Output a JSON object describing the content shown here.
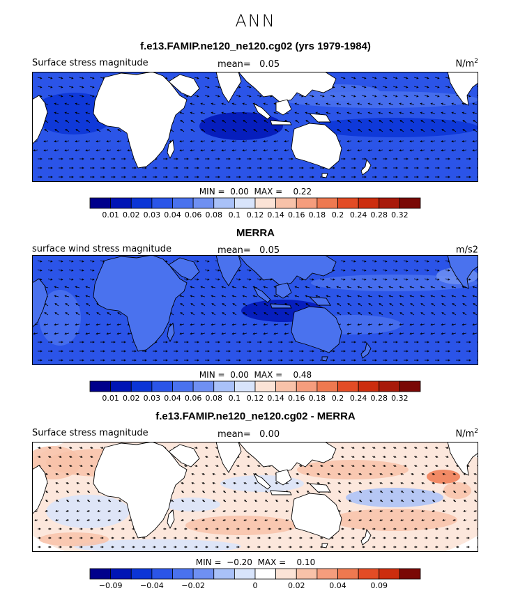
{
  "main_title": "ANN",
  "colors": {
    "ocean_base": "#2f5de6",
    "land": "#ffffff",
    "vector": "#000000"
  },
  "palette_pos": [
    "#00008b",
    "#0015b5",
    "#0b35d6",
    "#2b55e8",
    "#4a72ee",
    "#6f90f2",
    "#a9c1f8",
    "#d8e4fb",
    "#fbe3d6",
    "#f8c2a9",
    "#f59d7d",
    "#ee7950",
    "#e34c25",
    "#cc2d0e",
    "#a81a0a",
    "#7a0805"
  ],
  "palette_diff": [
    "#00008b",
    "#0015b5",
    "#0b35d6",
    "#2b55e8",
    "#4a72ee",
    "#6f90f2",
    "#a9c1f8",
    "#d8e4fb",
    "#ffffff",
    "#fbe3d6",
    "#f8c2a9",
    "#f59d7d",
    "#ee7950",
    "#e34c25",
    "#cc2d0e",
    "#7a0805"
  ],
  "chart_data": [
    {
      "type": "heatmap",
      "title": "f.e13.FAMIP.ne120_ne120.cg02 (yrs 1979-1984)",
      "variable": "Surface stress magnitude",
      "mean_label": "mean=",
      "mean_value": "0.05",
      "units": "N/m",
      "units_sup": "2",
      "min_label": "MIN =",
      "min_value": "0.00",
      "max_label": "MAX =",
      "max_value": "0.22",
      "colorbar_ticks": [
        "0.01",
        "0.02",
        "0.03",
        "0.04",
        "0.06",
        "0.08",
        "0.1",
        "0.12",
        "0.14",
        "0.16",
        "0.18",
        "0.2",
        "0.24",
        "0.28",
        "0.32"
      ]
    },
    {
      "type": "heatmap",
      "title": "MERRA",
      "variable": "surface wind stress magnitude",
      "mean_label": "mean=",
      "mean_value": "0.05",
      "units": "m/s2",
      "units_sup": "",
      "min_label": "MIN =",
      "min_value": "0.00",
      "max_label": "MAX =",
      "max_value": "0.48",
      "colorbar_ticks": [
        "0.01",
        "0.02",
        "0.03",
        "0.04",
        "0.06",
        "0.08",
        "0.1",
        "0.12",
        "0.14",
        "0.16",
        "0.18",
        "0.2",
        "0.24",
        "0.28",
        "0.32"
      ]
    },
    {
      "type": "heatmap",
      "title": "f.e13.FAMIP.ne120_ne120.cg02 - MERRA",
      "variable": "Surface stress magnitude",
      "mean_label": "mean=",
      "mean_value": "0.00",
      "units": "N/m",
      "units_sup": "2",
      "min_label": "MIN =",
      "min_value": "−0.20",
      "max_label": "MAX =",
      "max_value": "0.10",
      "colorbar_ticks": [
        "−0.09",
        "",
        "−0.04",
        "",
        "−0.02",
        "",
        "",
        "0",
        "",
        "0.02",
        "",
        "0.04",
        "",
        "0.09",
        ""
      ]
    }
  ]
}
